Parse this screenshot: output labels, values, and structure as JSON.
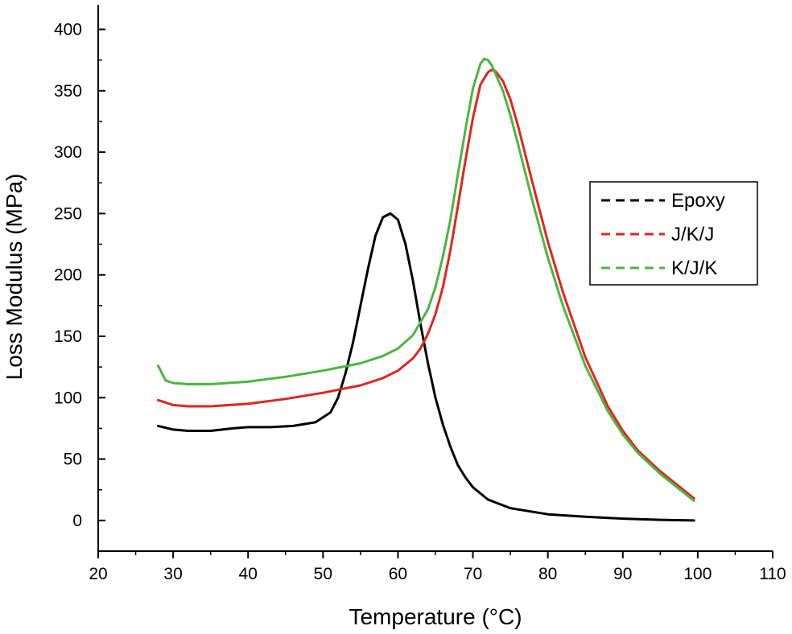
{
  "chart_data": {
    "type": "line",
    "title": "",
    "xlabel": "Temperature (°C)",
    "ylabel": "Loss Modulus (MPa)",
    "xlim": [
      20,
      110
    ],
    "ylim": [
      -25,
      420
    ],
    "x_ticks": [
      20,
      30,
      40,
      50,
      60,
      70,
      80,
      90,
      100,
      110
    ],
    "y_ticks": [
      0,
      50,
      100,
      150,
      200,
      250,
      300,
      350,
      400
    ],
    "grid": false,
    "legend_position": "right",
    "series": [
      {
        "name": "Epoxy",
        "color": "#000000",
        "x": [
          28,
          30,
          32,
          35,
          38,
          40,
          43,
          46,
          49,
          51,
          52,
          53,
          54,
          55,
          56,
          57,
          58,
          59,
          60,
          61,
          62,
          63,
          64,
          65,
          66,
          67,
          68,
          69,
          70,
          72,
          75,
          80,
          85,
          90,
          95,
          99.5
        ],
        "y": [
          77,
          74,
          73,
          73,
          75,
          76,
          76,
          77,
          80,
          88,
          100,
          120,
          145,
          175,
          205,
          232,
          247,
          250,
          245,
          225,
          195,
          160,
          128,
          100,
          78,
          60,
          45,
          35,
          27,
          17,
          10,
          5,
          3,
          1.5,
          0.5,
          0
        ]
      },
      {
        "name": "J/K/J",
        "color": "#e0261f",
        "x": [
          28,
          30,
          32,
          35,
          40,
          45,
          50,
          55,
          58,
          60,
          62,
          63,
          64,
          65,
          66,
          67,
          68,
          69,
          70,
          71,
          72,
          72.5,
          73,
          74,
          75,
          76,
          77,
          78,
          80,
          82,
          85,
          88,
          90,
          92,
          95,
          99.5
        ],
        "y": [
          98,
          94,
          93,
          93,
          95,
          99,
          104,
          110,
          116,
          122,
          132,
          140,
          152,
          168,
          190,
          220,
          256,
          293,
          328,
          355,
          365,
          367,
          366,
          358,
          343,
          322,
          298,
          274,
          227,
          186,
          133,
          93,
          73,
          57,
          40,
          18
        ]
      },
      {
        "name": "K/J/K",
        "color": "#4cb540",
        "x": [
          28,
          29,
          30,
          32,
          35,
          40,
          45,
          50,
          55,
          58,
          60,
          62,
          64,
          65,
          66,
          67,
          68,
          69,
          70,
          71,
          71.5,
          72,
          72.5,
          73,
          74,
          75,
          76,
          77,
          78,
          80,
          82,
          85,
          88,
          90,
          92,
          95,
          99.5
        ],
        "y": [
          126,
          114,
          112,
          111,
          111,
          113,
          117,
          122,
          128,
          134,
          140,
          151,
          172,
          190,
          215,
          245,
          282,
          318,
          352,
          372,
          376,
          375,
          371,
          364,
          350,
          330,
          307,
          283,
          259,
          214,
          175,
          126,
          89,
          70,
          55,
          38,
          16
        ]
      }
    ]
  }
}
